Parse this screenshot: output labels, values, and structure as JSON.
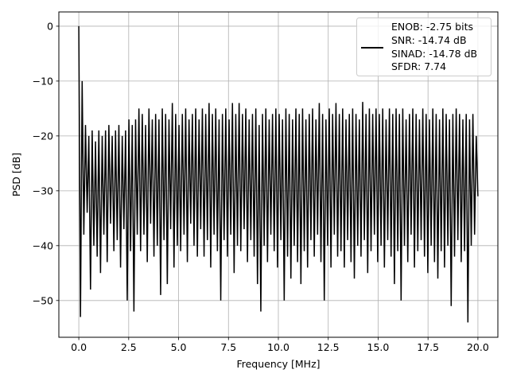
{
  "chart_data": {
    "type": "line",
    "title": "",
    "xlabel": "Frequency [MHz]",
    "ylabel": "PSD [dB]",
    "xlim": [
      -1.0,
      21.0
    ],
    "ylim": [
      -56.7,
      2.6
    ],
    "xticks": [
      0.0,
      2.5,
      5.0,
      7.5,
      10.0,
      12.5,
      15.0,
      17.5,
      20.0
    ],
    "xtick_labels": [
      "0.0",
      "2.5",
      "5.0",
      "7.5",
      "10.0",
      "12.5",
      "15.0",
      "17.5",
      "20.0"
    ],
    "yticks": [
      0,
      -10,
      -20,
      -30,
      -40,
      -50
    ],
    "ytick_labels": [
      "0",
      "−10",
      "−20",
      "−30",
      "−40",
      "−50"
    ],
    "grid": true,
    "legend_placement": "upper-right",
    "legend": [
      "ENOB: -2.75 bits",
      "SNR: -14.74 dB",
      "SINAD: -14.78 dB",
      "SFDR: 7.74"
    ],
    "series": [
      {
        "name": "PSD",
        "color": "#000000",
        "x_range": [
          0,
          20
        ],
        "y": [
          0,
          -53,
          -10,
          -38,
          -18,
          -34,
          -20,
          -48,
          -19,
          -40,
          -21,
          -42,
          -19,
          -45,
          -20,
          -38,
          -19,
          -43,
          -18,
          -36,
          -20,
          -41,
          -19,
          -39,
          -18,
          -44,
          -20,
          -37,
          -19,
          -50,
          -17,
          -41,
          -18,
          -52,
          -17,
          -38,
          -15,
          -41,
          -16,
          -38,
          -18,
          -43,
          -15,
          -36,
          -17,
          -42,
          -16,
          -40,
          -17,
          -49,
          -15,
          -39,
          -16,
          -47,
          -17,
          -37,
          -14,
          -44,
          -16,
          -40,
          -18,
          -41,
          -16,
          -38,
          -15,
          -43,
          -17,
          -36,
          -16,
          -40,
          -15,
          -42,
          -17,
          -37,
          -15,
          -42,
          -16,
          -39,
          -14,
          -44,
          -16,
          -38,
          -15,
          -41,
          -17,
          -50,
          -16,
          -39,
          -15,
          -42,
          -17,
          -38,
          -14,
          -45,
          -16,
          -40,
          -14,
          -41,
          -16,
          -37,
          -15,
          -43,
          -17,
          -39,
          -16,
          -42,
          -15,
          -47,
          -18,
          -52,
          -16,
          -40,
          -15,
          -43,
          -17,
          -38,
          -16,
          -41,
          -15,
          -44,
          -16,
          -39,
          -17,
          -50,
          -15,
          -42,
          -16,
          -46,
          -17,
          -40,
          -15,
          -43,
          -16,
          -47,
          -15,
          -41,
          -17,
          -44,
          -16,
          -39,
          -15,
          -42,
          -17,
          -38,
          -14,
          -43,
          -16,
          -50,
          -17,
          -40,
          -15,
          -44,
          -16,
          -38,
          -14,
          -42,
          -16,
          -41,
          -15,
          -44,
          -17,
          -39,
          -16,
          -43,
          -15,
          -46,
          -16,
          -40,
          -17,
          -42,
          -13.8,
          -39,
          -16,
          -45,
          -15,
          -41,
          -16,
          -38,
          -15,
          -43,
          -16,
          -40,
          -15,
          -44,
          -17,
          -39,
          -15,
          -42,
          -16,
          -47,
          -15,
          -41,
          -16,
          -50,
          -15,
          -40,
          -17,
          -43,
          -16,
          -38,
          -15,
          -44,
          -16,
          -41,
          -17,
          -39,
          -15,
          -42,
          -16,
          -45,
          -17,
          -40,
          -15,
          -43,
          -16,
          -46,
          -17,
          -41,
          -15,
          -44,
          -16,
          -40,
          -17,
          -51,
          -16,
          -42,
          -15,
          -39,
          -16,
          -43,
          -17,
          -41,
          -16,
          -54,
          -17,
          -40,
          -16,
          -38,
          -20,
          -31
        ]
      }
    ]
  }
}
